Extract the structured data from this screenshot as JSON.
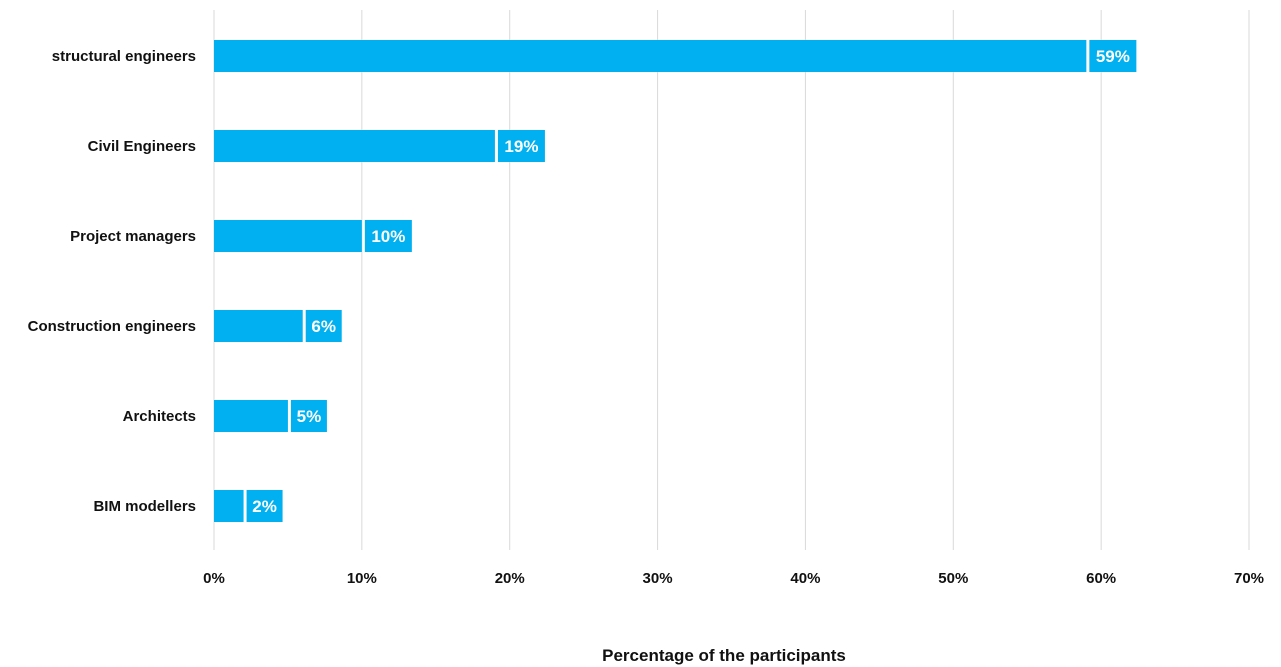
{
  "chart_data": {
    "type": "bar",
    "orientation": "horizontal",
    "categories": [
      "structural engineers",
      "Civil Engineers",
      "Project managers",
      "Construction engineers",
      "Architects",
      "BIM modellers"
    ],
    "values": [
      59,
      19,
      10,
      6,
      5,
      2
    ],
    "data_labels": [
      "59%",
      "19%",
      "10%",
      "6%",
      "5%",
      "2%"
    ],
    "x_ticks": [
      "0%",
      "10%",
      "20%",
      "30%",
      "40%",
      "50%",
      "60%",
      "70%"
    ],
    "xlim": [
      0,
      70
    ],
    "xlabel": "Percentage of the participants",
    "ylabel": "",
    "title": "",
    "grid": "vertical",
    "legend": "none",
    "colors": {
      "bar": "#00b0f0",
      "label_box": "#00b0f0",
      "grid": "#d9d9d9"
    }
  }
}
